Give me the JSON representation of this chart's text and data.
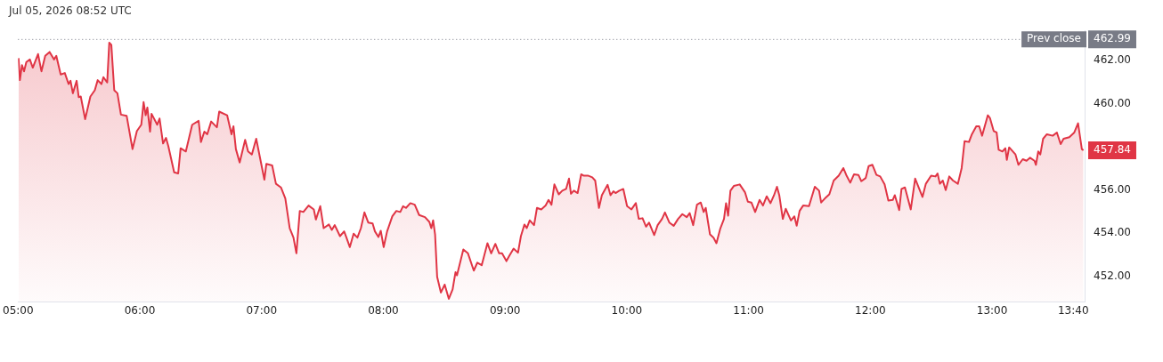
{
  "chart_data": {
    "type": "area",
    "title": "Jul 05, 2026 08:52 UTC",
    "marker": "none",
    "x": [
      5.004,
      5.015,
      5.032,
      5.049,
      5.068,
      5.097,
      5.121,
      5.164,
      5.192,
      5.223,
      5.259,
      5.295,
      5.314,
      5.35,
      5.384,
      5.415,
      5.431,
      5.45,
      5.481,
      5.498,
      5.515,
      5.551,
      5.594,
      5.63,
      5.654,
      5.685,
      5.701,
      5.732,
      5.749,
      5.766,
      5.79,
      5.816,
      5.845,
      5.892,
      5.94,
      5.976,
      6.012,
      6.031,
      6.048,
      6.062,
      6.084,
      6.096,
      6.143,
      6.162,
      6.191,
      6.215,
      6.234,
      6.282,
      6.315,
      6.335,
      6.378,
      6.43,
      6.483,
      6.502,
      6.53,
      6.554,
      6.586,
      6.633,
      6.652,
      6.717,
      6.753,
      6.769,
      6.789,
      6.82,
      6.865,
      6.889,
      6.92,
      6.956,
      7.023,
      7.039,
      7.087,
      7.118,
      7.159,
      7.195,
      7.231,
      7.262,
      7.286,
      7.314,
      7.343,
      7.386,
      7.429,
      7.446,
      7.482,
      7.51,
      7.553,
      7.577,
      7.601,
      7.644,
      7.678,
      7.697,
      7.725,
      7.756,
      7.787,
      7.816,
      7.845,
      7.876,
      7.912,
      7.931,
      7.96,
      7.979,
      8.003,
      8.031,
      8.074,
      8.107,
      8.139,
      8.162,
      8.186,
      8.222,
      8.258,
      8.294,
      8.342,
      8.378,
      8.394,
      8.409,
      8.425,
      8.442,
      8.473,
      8.504,
      8.538,
      8.569,
      8.593,
      8.605,
      8.657,
      8.695,
      8.743,
      8.772,
      8.808,
      8.855,
      8.886,
      8.92,
      8.951,
      8.975,
      9.011,
      9.035,
      9.07,
      9.106,
      9.13,
      9.159,
      9.178,
      9.202,
      9.238,
      9.262,
      9.297,
      9.333,
      9.357,
      9.381,
      9.405,
      9.441,
      9.47,
      9.501,
      9.525,
      9.541,
      9.565,
      9.596,
      9.625,
      9.644,
      9.68,
      9.716,
      9.74,
      9.771,
      9.795,
      9.842,
      9.866,
      9.89,
      9.907,
      9.938,
      9.971,
      10.002,
      10.038,
      10.074,
      10.098,
      10.129,
      10.158,
      10.182,
      10.225,
      10.253,
      10.289,
      10.313,
      10.349,
      10.385,
      10.421,
      10.456,
      10.492,
      10.516,
      10.545,
      10.576,
      10.607,
      10.631,
      10.648,
      10.683,
      10.712,
      10.736,
      10.767,
      10.798,
      10.815,
      10.832,
      10.851,
      10.879,
      10.927,
      10.97,
      10.994,
      11.023,
      11.054,
      11.09,
      11.118,
      11.149,
      11.18,
      11.209,
      11.233,
      11.252,
      11.281,
      11.305,
      11.348,
      11.376,
      11.395,
      11.419,
      11.448,
      11.496,
      11.544,
      11.579,
      11.596,
      11.627,
      11.663,
      11.699,
      11.74,
      11.778,
      11.802,
      11.835,
      11.866,
      11.902,
      11.926,
      11.962,
      11.986,
      12.017,
      12.05,
      12.081,
      12.117,
      12.148,
      12.184,
      12.201,
      12.237,
      12.256,
      12.284,
      12.332,
      12.368,
      12.428,
      12.456,
      12.499,
      12.535,
      12.552,
      12.571,
      12.595,
      12.619,
      12.648,
      12.679,
      12.719,
      12.75,
      12.774,
      12.81,
      12.834,
      12.87,
      12.894,
      12.918,
      12.965,
      12.982,
      13.013,
      13.037,
      13.054,
      13.085,
      13.109,
      13.121,
      13.14,
      13.192,
      13.216,
      13.252,
      13.283,
      13.312,
      13.348,
      13.36,
      13.379,
      13.396,
      13.419,
      13.45,
      13.498,
      13.532,
      13.563,
      13.587,
      13.634,
      13.675,
      13.706,
      13.737,
      13.75
    ],
    "series": [
      {
        "color": "#e03545",
        "values": [
          462.12,
          461.1,
          461.8,
          461.51,
          461.94,
          462.06,
          461.68,
          462.31,
          461.51,
          462.23,
          462.41,
          462.06,
          462.23,
          461.36,
          461.43,
          460.92,
          461.07,
          460.49,
          461.07,
          460.31,
          460.34,
          459.29,
          460.34,
          460.63,
          461.1,
          460.92,
          461.24,
          460.99,
          462.84,
          462.74,
          460.63,
          460.49,
          459.5,
          459.44,
          457.9,
          458.74,
          459.03,
          460.08,
          459.47,
          459.83,
          458.71,
          459.54,
          459.03,
          459.32,
          458.16,
          458.42,
          458.04,
          456.82,
          456.77,
          457.94,
          457.79,
          459.03,
          459.21,
          458.23,
          458.71,
          458.59,
          459.18,
          458.91,
          459.64,
          459.47,
          458.59,
          458.96,
          457.9,
          457.28,
          458.33,
          457.79,
          457.65,
          458.38,
          456.48,
          457.21,
          457.14,
          456.29,
          456.12,
          455.61,
          454.23,
          453.79,
          453.06,
          455.03,
          454.98,
          455.28,
          455.1,
          454.63,
          455.25,
          454.23,
          454.4,
          454.15,
          454.37,
          453.86,
          454.08,
          453.79,
          453.35,
          453.97,
          453.79,
          454.23,
          454.96,
          454.49,
          454.45,
          454.08,
          453.82,
          454.11,
          453.35,
          454.08,
          454.78,
          455.03,
          454.98,
          455.25,
          455.17,
          455.39,
          455.32,
          454.84,
          454.74,
          454.52,
          454.23,
          454.59,
          453.94,
          451.97,
          451.24,
          451.61,
          450.95,
          451.39,
          452.19,
          452.04,
          453.24,
          453.06,
          452.26,
          452.63,
          452.51,
          453.53,
          453.06,
          453.5,
          453.06,
          453.06,
          452.7,
          452.95,
          453.28,
          453.09,
          453.86,
          454.4,
          454.23,
          454.59,
          454.37,
          455.17,
          455.1,
          455.28,
          455.54,
          455.32,
          456.26,
          455.8,
          455.97,
          456.05,
          456.53,
          455.83,
          455.97,
          455.86,
          456.73,
          456.67,
          456.67,
          456.59,
          456.44,
          455.17,
          455.76,
          456.24,
          455.76,
          455.94,
          455.86,
          455.97,
          456.05,
          455.25,
          455.1,
          455.39,
          454.66,
          454.69,
          454.3,
          454.49,
          453.91,
          454.37,
          454.66,
          454.96,
          454.49,
          454.34,
          454.66,
          454.88,
          454.74,
          454.93,
          454.37,
          455.32,
          455.42,
          454.98,
          455.17,
          453.94,
          453.79,
          453.53,
          454.2,
          454.66,
          455.39,
          454.81,
          455.97,
          456.19,
          456.26,
          455.9,
          455.46,
          455.42,
          454.98,
          455.54,
          455.28,
          455.71,
          455.39,
          455.76,
          456.15,
          455.76,
          454.66,
          455.13,
          454.59,
          454.78,
          454.34,
          455.03,
          455.28,
          455.25,
          456.15,
          455.97,
          455.42,
          455.61,
          455.8,
          456.44,
          456.67,
          457.02,
          456.7,
          456.34,
          456.73,
          456.7,
          456.41,
          456.56,
          457.11,
          457.17,
          456.7,
          456.63,
          456.26,
          455.51,
          455.54,
          455.76,
          455.07,
          456.05,
          456.12,
          455.1,
          456.53,
          455.68,
          456.29,
          456.67,
          456.63,
          456.77,
          456.29,
          456.44,
          456,
          456.63,
          456.44,
          456.29,
          457.02,
          458.27,
          458.23,
          458.59,
          458.96,
          458.96,
          458.52,
          459.47,
          459.35,
          458.74,
          458.67,
          457.87,
          457.79,
          457.94,
          457.4,
          457.98,
          457.65,
          457.17,
          457.43,
          457.36,
          457.5,
          457.36,
          457.17,
          457.79,
          457.65,
          458.38,
          458.59,
          458.52,
          458.67,
          458.13,
          458.38,
          458.45,
          458.67,
          459.1,
          457.9,
          457.84
        ]
      }
    ],
    "xlim": [
      5,
      13.76
    ],
    "xticks": [
      {
        "value": 5,
        "label": "05:00"
      },
      {
        "value": 6,
        "label": "06:00"
      },
      {
        "value": 7,
        "label": "07:00"
      },
      {
        "value": 8,
        "label": "08:00"
      },
      {
        "value": 9,
        "label": "09:00"
      },
      {
        "value": 10,
        "label": "10:00"
      },
      {
        "value": 11,
        "label": "11:00"
      },
      {
        "value": 12,
        "label": "12:00"
      },
      {
        "value": 13,
        "label": "13:00"
      },
      {
        "value": 13.6667,
        "label": "13:40"
      }
    ],
    "ylim": [
      450.8,
      463.4
    ],
    "yticks": [
      {
        "value": 452,
        "label": "452.00"
      },
      {
        "value": 454,
        "label": "454.00"
      },
      {
        "value": 456,
        "label": "456.00"
      },
      {
        "value": 460,
        "label": "460.00"
      },
      {
        "value": 462,
        "label": "462.00"
      }
    ],
    "ref_lines": [
      {
        "axis": "y",
        "value": 462.99,
        "label": "Prev close",
        "color": "#787b86",
        "line_style": "dotted"
      }
    ],
    "annotations": [
      {
        "text": "462.99",
        "x": 13.75,
        "y": 462.99
      },
      {
        "text": "457.84",
        "x": 13.75,
        "y": 457.84
      }
    ]
  }
}
